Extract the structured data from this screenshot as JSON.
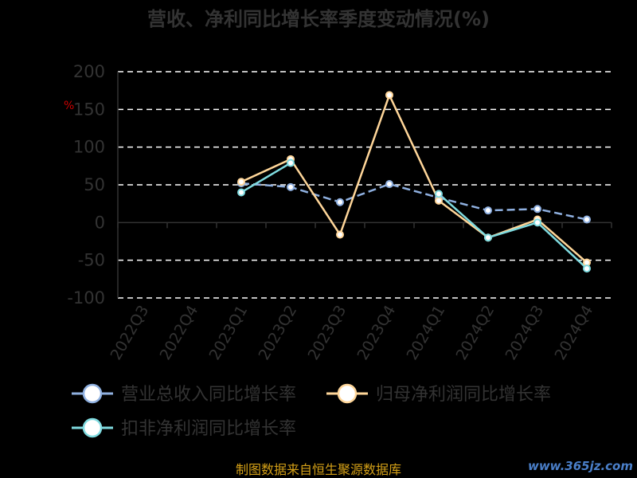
{
  "title": "营收、净利同比增长率季度变动情况(%)",
  "unit_label": "%",
  "source": "制图数据来自恒生聚源数据库",
  "watermark": "www.365jz.com",
  "chart_data": {
    "type": "line",
    "title": "营收、净利同比增长率季度变动情况(%)",
    "xlabel": "",
    "ylabel": "%",
    "ylim": [
      -100,
      200
    ],
    "yticks": [
      200,
      150,
      100,
      50,
      0,
      -50,
      -100
    ],
    "grid": true,
    "legend_position": "bottom",
    "x": [
      "2022Q3",
      "2022Q4",
      "2023Q1",
      "2023Q2",
      "2023Q3",
      "2023Q4",
      "2024Q1",
      "2024Q2",
      "2024Q3",
      "2024Q4"
    ],
    "series": [
      {
        "name": "营业总收入同比增长率",
        "color": "#8fb0e0",
        "values": [
          null,
          null,
          52,
          47,
          27,
          51,
          33,
          16,
          18,
          4
        ]
      },
      {
        "name": "归母净利润同比增长率",
        "color": "#ffd699",
        "values": [
          null,
          null,
          54,
          84,
          -16,
          169,
          29,
          -20,
          4,
          -53
        ]
      },
      {
        "name": "扣非净利润同比增长率",
        "color": "#7fdbe0",
        "values": [
          null,
          null,
          40,
          79,
          null,
          null,
          38,
          -20,
          0,
          -61
        ]
      }
    ]
  }
}
